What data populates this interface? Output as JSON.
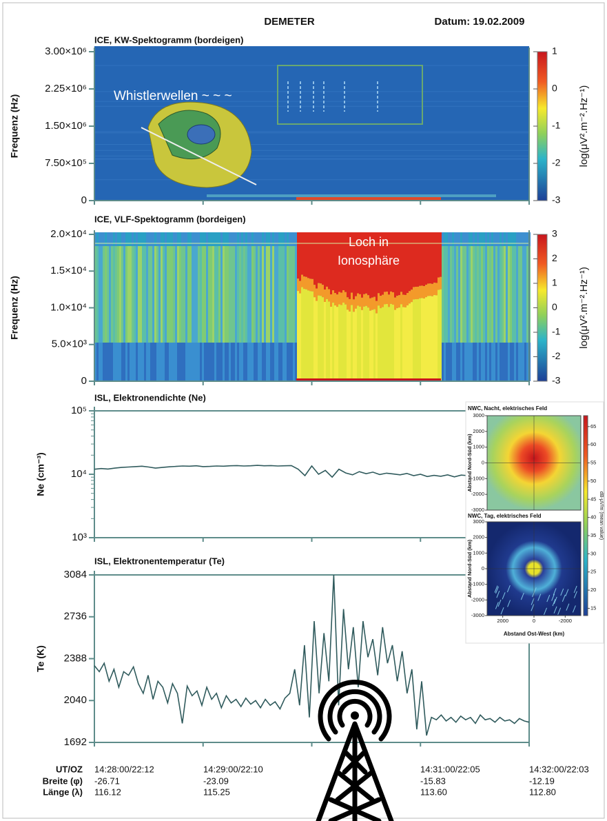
{
  "header": {
    "title": "DEMETER",
    "date": "Datum: 19.02.2009"
  },
  "chart_data": [
    {
      "type": "spectrogram",
      "title": "ICE, KW-Spektogramm (bordeigen)",
      "ylabel": "Frequenz (Hz)",
      "ylim": [
        0,
        3000000
      ],
      "yticks": [
        0,
        {
          "value": 750000,
          "label": "7.50×10⁵"
        },
        {
          "value": 1500000,
          "label": "1.50×10⁶"
        },
        {
          "value": 2250000,
          "label": "2.25×10⁶"
        },
        {
          "value": 3000000,
          "label": "3.00×10⁶"
        }
      ],
      "annotation": [
        "Whistlerwellen ~ ~ ~"
      ],
      "colorbar": {
        "lim": [
          -3,
          1
        ],
        "ticks": [
          -3,
          -2,
          -1,
          0,
          1
        ],
        "label": "log(μV².m⁻².Hz⁻¹)"
      }
    },
    {
      "type": "spectrogram",
      "title": "ICE, VLF-Spektogramm (bordeigen)",
      "ylabel": "Frequenz (Hz)",
      "ylim": [
        0,
        20000
      ],
      "yticks": [
        0,
        {
          "value": 5000,
          "label": "5.0×10³"
        },
        {
          "value": 10000,
          "label": "1.0×10⁴"
        },
        {
          "value": 15000,
          "label": "1.5×10⁴"
        },
        {
          "value": 20000,
          "label": "2.0×10⁴"
        }
      ],
      "annotation": [
        "Loch in",
        "Ionosphäre"
      ],
      "colorbar": {
        "lim": [
          -3,
          3
        ],
        "ticks": [
          -3,
          -2,
          -1,
          0,
          1,
          2,
          3
        ],
        "label": "log(μV².m⁻².Hz⁻¹)"
      }
    },
    {
      "type": "line",
      "title": "ISL, Elektronendichte (Ne)",
      "ylabel": "Ne (cm⁻³)",
      "log": true,
      "color": "#2f5a5c",
      "ylim": [
        1000,
        100000
      ],
      "yticks": [
        {
          "value": 1000,
          "label": "10³"
        },
        {
          "value": 10000,
          "label": "10⁴"
        },
        {
          "value": 100000,
          "label": "10⁵"
        }
      ],
      "values": [
        12000,
        12300,
        12100,
        12500,
        12800,
        13000,
        13200,
        13400,
        13000,
        12500,
        12800,
        13100,
        13300,
        13500,
        13400,
        13600,
        13200,
        13300,
        13500,
        13400,
        13600,
        13700,
        13500,
        13600,
        13800,
        13600,
        13700,
        13500,
        13600,
        13700,
        12000,
        9500,
        13500,
        10000,
        11500,
        9000,
        12000,
        10500,
        9800,
        11000,
        10200,
        10800,
        9900,
        10400,
        10100,
        9800,
        10300,
        9500,
        10000,
        9200,
        9600,
        9300,
        9800,
        9100,
        9700,
        9500,
        10200,
        9900,
        11000,
        12500,
        14000,
        15000,
        15500,
        16000,
        15800
      ]
    },
    {
      "type": "line",
      "title": "ISL, Elektronentemperatur (Te)",
      "ylabel": "Te (K)",
      "color": "#2f5a5c",
      "ylim": [
        1692,
        3084
      ],
      "yticks": [
        1692,
        2040,
        2388,
        2736,
        3084
      ],
      "values": [
        2330,
        2280,
        2350,
        2200,
        2300,
        2150,
        2280,
        2250,
        2320,
        2180,
        2100,
        2250,
        2050,
        2200,
        2150,
        2020,
        2180,
        2100,
        1850,
        2160,
        2080,
        2120,
        2000,
        2150,
        2050,
        2100,
        1980,
        2080,
        2020,
        2050,
        1990,
        2060,
        2010,
        2040,
        1980,
        2050,
        2000,
        2030,
        1970,
        2060,
        2100,
        2300,
        2000,
        2500,
        1900,
        2700,
        2100,
        2600,
        2200,
        3084,
        2000,
        2800,
        2300,
        2650,
        2150,
        2700,
        2400,
        2550,
        2250,
        2650,
        2350,
        2500,
        2200,
        2450,
        2100,
        2300,
        1800,
        2200,
        1750,
        1900,
        1880,
        1920,
        1870,
        1900,
        1860,
        1910,
        1880,
        1900,
        1850,
        1920,
        1880,
        1890,
        1860,
        1900,
        1870,
        1880,
        1850,
        1890,
        1870,
        1860
      ]
    },
    {
      "type": "field-maps",
      "panels": [
        {
          "title": "NWC, Nacht, elektrisches Feld"
        },
        {
          "title": "NWC, Tag, elektrisches Feld"
        }
      ],
      "ylabel": "Abstand Nord-Süd (km)",
      "xlabel": "Abstand Ost-West (km)",
      "xlim": [
        -3000,
        3000
      ],
      "xticks": [
        -2000,
        0,
        2000
      ],
      "ylim": [
        -3000,
        3000
      ],
      "yticks": [
        -3000,
        -2000,
        -1000,
        0,
        1000,
        2000,
        3000
      ],
      "colorbar": {
        "lim": [
          13,
          68
        ],
        "ticks": [
          15,
          20,
          25,
          30,
          35,
          40,
          45,
          50,
          55,
          60,
          65
        ],
        "label": "dB-μV/m (mean value)"
      }
    }
  ],
  "footer": {
    "labels": [
      "UT/OZ",
      "Breite (φ)",
      "Länge (λ)"
    ],
    "columns": [
      [
        "14:28:00/22:12",
        "-26.71",
        "116.12"
      ],
      [
        "14:29:00/22:10",
        "-23.09",
        "115.25"
      ],
      [
        "14:31:00/22:05",
        "-15.83",
        "113.60"
      ],
      [
        "14:32:00/22:03",
        "-12.19",
        "112.80"
      ]
    ]
  }
}
